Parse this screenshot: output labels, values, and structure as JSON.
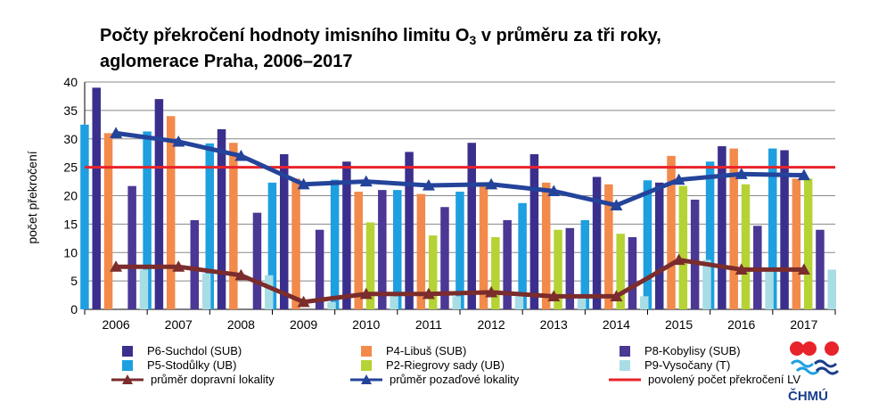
{
  "title": {
    "line1": "Počty překročení hodnoty imisního limitu O",
    "line1_sub": "3",
    "line1_end": " v průměru za tři roky,",
    "line2": "aglomerace Praha, 2006–2017"
  },
  "chart_data": {
    "type": "bar",
    "categories": [
      "2006",
      "2007",
      "2008",
      "2009",
      "2010",
      "2011",
      "2012",
      "2013",
      "2014",
      "2015",
      "2016",
      "2017"
    ],
    "ylabel": "počet překročení",
    "ylim": [
      0,
      40
    ],
    "yticks": [
      0,
      5,
      10,
      15,
      20,
      25,
      30,
      35,
      40
    ],
    "grid": true,
    "legend_position": "bottom",
    "series": [
      {
        "name": "P5-Stodůlky (UB)",
        "kind": "bar",
        "color": "#1e9fe0",
        "values": [
          32.5,
          31.3,
          29.2,
          22.3,
          22.8,
          21.0,
          20.7,
          18.7,
          15.7,
          22.7,
          26.0,
          28.3
        ]
      },
      {
        "name": "P6-Suchdol (SUB)",
        "kind": "bar",
        "color": "#3a2f8c",
        "values": [
          39.0,
          37.0,
          31.7,
          27.3,
          26.0,
          27.7,
          29.3,
          27.3,
          23.3,
          22.3,
          28.7,
          28.0
        ]
      },
      {
        "name": "P4-Libuš (SUB)",
        "kind": "bar",
        "color": "#f28a4b",
        "values": [
          31.0,
          34.0,
          29.3,
          23.0,
          20.7,
          20.3,
          21.7,
          22.3,
          22.0,
          27.0,
          28.3,
          23.0
        ]
      },
      {
        "name": "P2-Riegrovy sady (UB)",
        "kind": "bar",
        "color": "#b5d334",
        "values": [
          null,
          null,
          null,
          null,
          15.3,
          13.0,
          12.7,
          14.0,
          13.3,
          21.7,
          22.0,
          23.0
        ]
      },
      {
        "name": "P8-Kobylisy (SUB)",
        "kind": "bar",
        "color": "#4b3794",
        "values": [
          21.7,
          15.7,
          17.0,
          14.0,
          21.0,
          18.0,
          15.7,
          14.3,
          12.7,
          19.3,
          14.7,
          14.0
        ]
      },
      {
        "name": "P9-Vysočany (T)",
        "kind": "bar",
        "color": "#a8dde6",
        "values": [
          7.0,
          6.3,
          6.0,
          1.3,
          2.3,
          2.3,
          2.3,
          2.0,
          2.3,
          8.7,
          6.7,
          7.0
        ]
      },
      {
        "name": "průměr dopravní lokality",
        "kind": "line",
        "color": "#7b2c2c",
        "values": [
          7.5,
          7.5,
          6.0,
          1.3,
          2.7,
          2.7,
          3.0,
          2.3,
          2.3,
          8.7,
          7.0,
          7.0
        ]
      },
      {
        "name": "průměr pozaďové lokality",
        "kind": "line",
        "color": "#24439a",
        "values": [
          31.0,
          29.5,
          27.0,
          22.0,
          22.5,
          21.8,
          22.0,
          20.8,
          18.3,
          22.8,
          23.8,
          23.6
        ]
      },
      {
        "name": "povolený počet překročení LV",
        "kind": "hline",
        "color": "#e8232a",
        "value": 25
      }
    ]
  },
  "legend": [
    {
      "label": "P6-Suchdol (SUB)",
      "type": "swatch",
      "color": "#3a2f8c"
    },
    {
      "label": "P5-Stodůlky (UB)",
      "type": "swatch",
      "color": "#1e9fe0"
    },
    {
      "label": "průměr dopravní lokality",
      "type": "triangle-line",
      "color": "#7b2c2c"
    },
    {
      "label": "P4-Libuš (SUB)",
      "type": "swatch",
      "color": "#f28a4b"
    },
    {
      "label": "P2-Riegrovy sady (UB)",
      "type": "swatch",
      "color": "#b5d334"
    },
    {
      "label": "průměr pozaďové lokality",
      "type": "triangle-line",
      "color": "#24439a"
    },
    {
      "label": "P8-Kobylisy (SUB)",
      "type": "swatch",
      "color": "#4b3794"
    },
    {
      "label": "P9-Vysočany (T)",
      "type": "swatch",
      "color": "#a8dde6"
    },
    {
      "label": "povolený počet překročení LV",
      "type": "line",
      "color": "#e8232a"
    }
  ],
  "logo": {
    "text": "ČHMÚ",
    "icon": "chmu-logo-icon"
  }
}
